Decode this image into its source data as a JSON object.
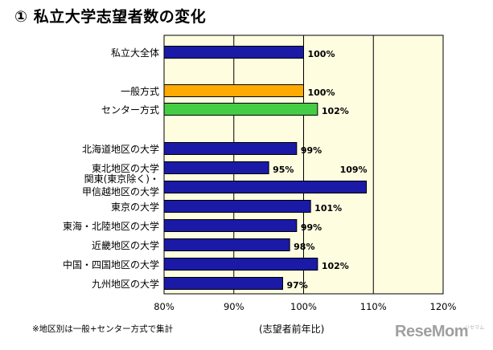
{
  "title": "① 私立大学志望者数の変化",
  "footnote": "※地区別は一般+センター方式で集計",
  "watermark": "ReseMom",
  "watermark_sub": "リセマム",
  "colors": {
    "blue": "#1a1aa6",
    "orange": "#ffaa00",
    "green": "#44cc44",
    "plot_bg": "#fffde0",
    "grid": "#000000"
  },
  "chart_data": {
    "type": "bar",
    "orientation": "horizontal",
    "categories": [
      "私立大全体",
      "一般方式",
      "センター方式",
      "北海道地区の大学",
      "東北地区の大学",
      "関東(東京除く)・甲信越地区の大学",
      "東京の大学",
      "東海・北陸地区の大学",
      "近畿地区の大学",
      "中国・四国地区の大学",
      "九州地区の大学"
    ],
    "values": [
      100,
      100,
      102,
      99,
      95,
      109,
      101,
      99,
      98,
      102,
      97
    ],
    "data_labels": [
      "100%",
      "100%",
      "102%",
      "99%",
      "95%",
      "109%",
      "101%",
      "99%",
      "98%",
      "102%",
      "97%"
    ],
    "bar_colors": [
      "blue",
      "orange",
      "green",
      "blue",
      "blue",
      "blue",
      "blue",
      "blue",
      "blue",
      "blue",
      "blue"
    ],
    "xlabel": "(志望者前年比)",
    "xlim": [
      80,
      120
    ],
    "xticks": [
      80,
      90,
      100,
      110,
      120
    ],
    "xtick_labels": [
      "80%",
      "90%",
      "100%",
      "110%",
      "120%"
    ],
    "grid": "vertical"
  }
}
